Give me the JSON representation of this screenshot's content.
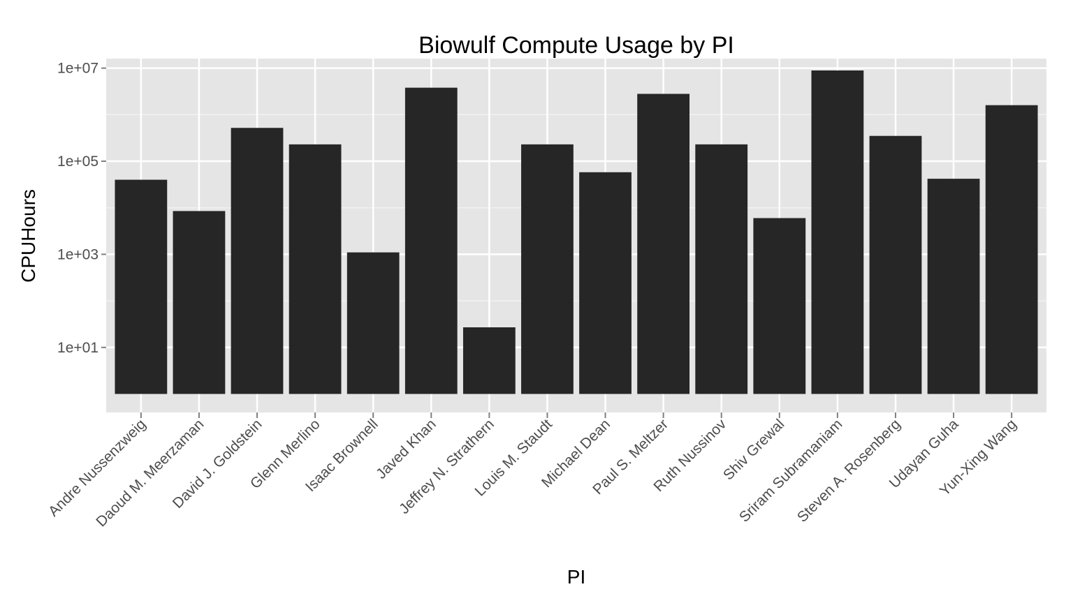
{
  "chart_data": {
    "type": "bar",
    "title": "Biowulf Compute Usage by PI",
    "xlabel": "PI",
    "ylabel": "CPUHours",
    "yscale": "log10",
    "ylim": [
      0.4,
      16000000
    ],
    "yticks": [
      {
        "value": 10,
        "label": "1e+01"
      },
      {
        "value": 1000,
        "label": "1e+03"
      },
      {
        "value": 100000,
        "label": "1e+05"
      },
      {
        "value": 10000000,
        "label": "1e+07"
      }
    ],
    "baseline": 1,
    "grid": true,
    "legend": "none",
    "colors": {
      "panel": "#e5e5e5",
      "grid_major": "#ffffff",
      "grid_minor": "#f2f2f2",
      "bar": "#262626",
      "tick": "#7f7f7f"
    },
    "categories": [
      "Andre Nussenzweig",
      "Daoud M. Meerzaman",
      "David J. Goldstein",
      "Glenn Merlino",
      "Isaac Brownell",
      "Javed Khan",
      "Jeffrey N. Strathern",
      "Louis M. Staudt",
      "Michael Dean",
      "Paul S. Meltzer",
      "Ruth Nussinov",
      "Shiv Grewal",
      "Sriram Subramaniam",
      "Steven A. Rosenberg",
      "Udayan Guha",
      "Yun-Xing Wang"
    ],
    "values": [
      40000,
      8500,
      520000,
      230000,
      1100,
      3800000,
      27,
      230000,
      58000,
      2800000,
      230000,
      6000,
      8900000,
      350000,
      42000,
      1600000
    ]
  }
}
